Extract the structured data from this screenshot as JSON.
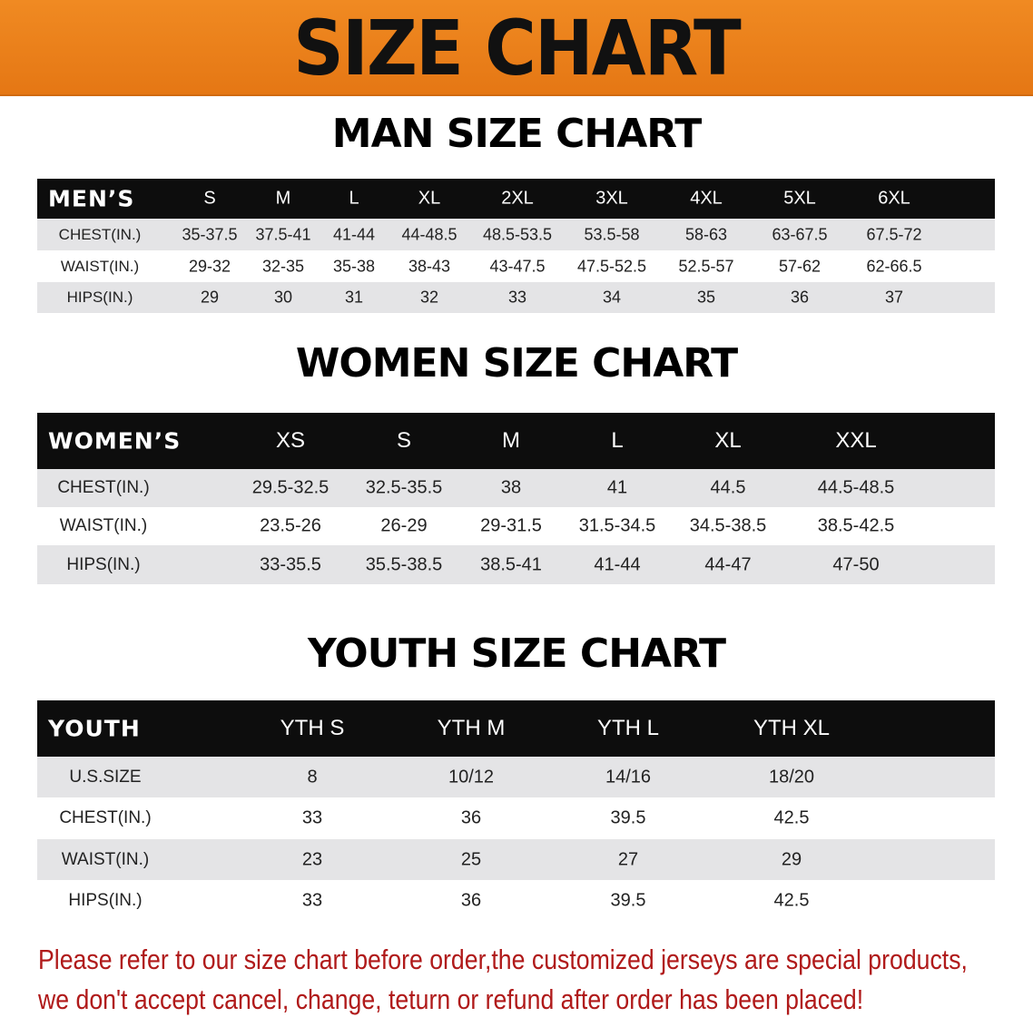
{
  "banner": {
    "title": "SIZE CHART",
    "color": "#e97f1a"
  },
  "men": {
    "title": "MAN SIZE CHART",
    "header": "MEN’S",
    "sizes": [
      "S",
      "M",
      "L",
      "XL",
      "2XL",
      "3XL",
      "4XL",
      "5XL",
      "6XL"
    ],
    "rows": [
      {
        "label": "CHEST(IN.)",
        "values": [
          "35-37.5",
          "37.5-41",
          "41-44",
          "44-48.5",
          "48.5-53.5",
          "53.5-58",
          "58-63",
          "63-67.5",
          "67.5-72"
        ]
      },
      {
        "label": "WAIST(IN.)",
        "values": [
          "29-32",
          "32-35",
          "35-38",
          "38-43",
          "43-47.5",
          "47.5-52.5",
          "52.5-57",
          "57-62",
          "62-66.5"
        ]
      },
      {
        "label": "HIPS(IN.)",
        "values": [
          "29",
          "30",
          "31",
          "32",
          "33",
          "34",
          "35",
          "36",
          "37"
        ]
      }
    ]
  },
  "women": {
    "title": "WOMEN SIZE CHART",
    "header": "WOMEN’S",
    "sizes": [
      "XS",
      "S",
      "M",
      "L",
      "XL",
      "XXL"
    ],
    "rows": [
      {
        "label": "CHEST(IN.)",
        "values": [
          "29.5-32.5",
          "32.5-35.5",
          "38",
          "41",
          "44.5",
          "44.5-48.5"
        ]
      },
      {
        "label": "WAIST(IN.)",
        "values": [
          "23.5-26",
          "26-29",
          "29-31.5",
          "31.5-34.5",
          "34.5-38.5",
          "38.5-42.5"
        ]
      },
      {
        "label": "HIPS(IN.)",
        "values": [
          "33-35.5",
          "35.5-38.5",
          "38.5-41",
          "41-44",
          "44-47",
          "47-50"
        ]
      }
    ]
  },
  "youth": {
    "title": "YOUTH SIZE CHART",
    "header": "YOUTH",
    "sizes": [
      "YTH S",
      "YTH M",
      "YTH L",
      "YTH XL"
    ],
    "rows": [
      {
        "label": "U.S.SIZE",
        "values": [
          "8",
          "10/12",
          "14/16",
          "18/20"
        ]
      },
      {
        "label": "CHEST(IN.)",
        "values": [
          "33",
          "36",
          "39.5",
          "42.5"
        ]
      },
      {
        "label": "WAIST(IN.)",
        "values": [
          "23",
          "25",
          "27",
          "29"
        ]
      },
      {
        "label": "HIPS(IN.)",
        "values": [
          "33",
          "36",
          "39.5",
          "42.5"
        ]
      }
    ]
  },
  "notice": {
    "line1": "Please refer to our size chart before order,the customized jerseys are special products,",
    "line2": "we don't accept cancel, change, teturn or refund after order has been placed!",
    "color": "#b01a1a"
  }
}
